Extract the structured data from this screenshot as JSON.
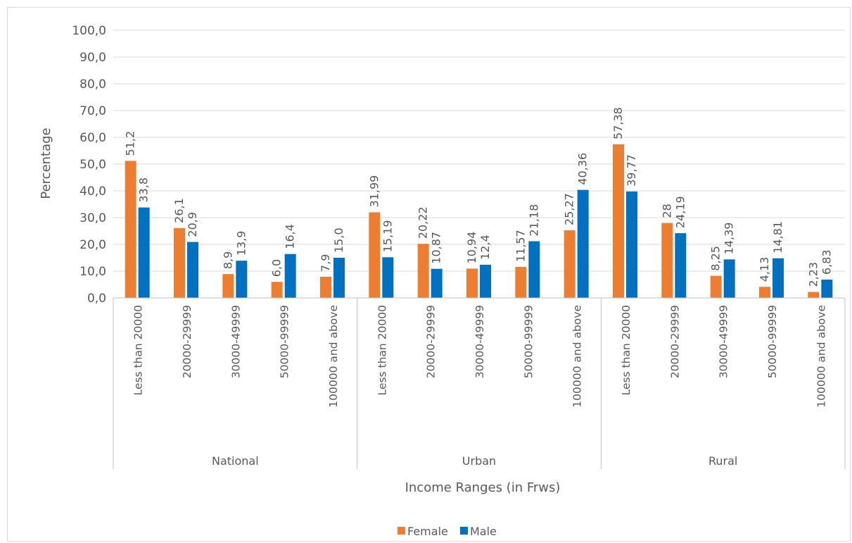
{
  "chart_data": {
    "type": "bar",
    "groups": [
      {
        "name": "National",
        "categories": [
          "Less than 20000",
          "20000-29999",
          "30000-49999",
          "50000-99999",
          "100000 and above"
        ]
      },
      {
        "name": "Urban",
        "categories": [
          "Less than 20000",
          "20000-29999",
          "30000-49999",
          "50000-99999",
          "100000 and above"
        ]
      },
      {
        "name": "Rural",
        "categories": [
          "Less than 20000",
          "20000-29999",
          "30000-49999",
          "50000-99999",
          "100000 and above"
        ]
      }
    ],
    "series": [
      {
        "name": "Female",
        "color": "#ed7d31",
        "values": [
          51.2,
          26.1,
          8.9,
          6.0,
          7.9,
          31.99,
          20.22,
          10.94,
          11.57,
          25.27,
          57.38,
          28,
          8.25,
          4.13,
          2.23
        ],
        "labels": [
          "51,2",
          "26,1",
          "8,9",
          "6,0",
          "7,9",
          "31,99",
          "20,22",
          "10,94",
          "11,57",
          "25,27",
          "57,38",
          "28",
          "8,25",
          "4,13",
          "2,23"
        ]
      },
      {
        "name": "Male",
        "color": "#0070c0",
        "values": [
          33.8,
          20.9,
          13.9,
          16.4,
          15.0,
          15.19,
          10.87,
          12.4,
          21.18,
          40.36,
          39.77,
          24.19,
          14.39,
          14.81,
          6.83
        ],
        "labels": [
          "33,8",
          "20,9",
          "13,9",
          "16,4",
          "15,0",
          "15,19",
          "10,87",
          "12,4",
          "21,18",
          "40,36",
          "39,77",
          "24,19",
          "14,39",
          "14,81",
          "6,83"
        ]
      }
    ],
    "ylim": [
      0,
      100
    ],
    "yticks": [
      "0,0",
      "10,0",
      "20,0",
      "30,0",
      "40,0",
      "50,0",
      "60,0",
      "70,0",
      "80,0",
      "90,0",
      "100,0"
    ],
    "xlabel": "Income Ranges (in Frws)",
    "ylabel": "Percentage",
    "grid": true,
    "legend_position": "bottom"
  }
}
